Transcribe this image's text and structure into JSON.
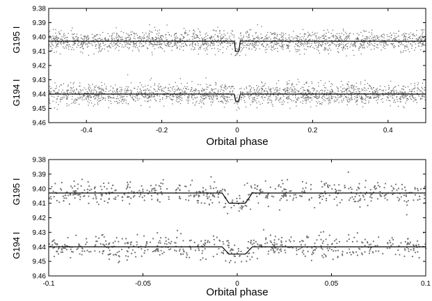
{
  "chart_data": [
    {
      "type": "scatter",
      "xlabel": "Orbital phase",
      "xlim": [
        -0.5,
        0.5
      ],
      "ylim": [
        9.38,
        9.46
      ],
      "y_inverted": true,
      "grid": false,
      "xticks": [
        -0.4,
        -0.2,
        0,
        0.2,
        0.4
      ],
      "xtick_labels": [
        "-0.4",
        "-0.2",
        "0",
        "0.2",
        "0.4"
      ],
      "yticks": [
        9.38,
        9.39,
        9.4,
        9.41,
        9.42,
        9.43,
        9.44,
        9.45,
        9.46
      ],
      "ytick_labels": [
        "9.38",
        "9.39",
        "9.40",
        "9.41",
        "9.42",
        "9.43",
        "9.44",
        "9.45",
        "9.46"
      ],
      "series": [
        {
          "name": "G195 I",
          "baseline": 9.403,
          "eclipse_depth": 0.007,
          "eclipse_half_width": 0.008,
          "scatter": 0.0035,
          "n_points": 1800
        },
        {
          "name": "G194 I",
          "baseline": 9.44,
          "eclipse_depth": 0.005,
          "eclipse_half_width": 0.008,
          "scatter": 0.0035,
          "n_points": 1800
        }
      ],
      "model_color": "#000000",
      "point_color": "#707070"
    },
    {
      "type": "scatter",
      "xlabel": "Orbital phase",
      "xlim": [
        -0.1,
        0.1
      ],
      "ylim": [
        9.38,
        9.46
      ],
      "y_inverted": true,
      "grid": false,
      "xticks": [
        -0.1,
        -0.05,
        0,
        0.05,
        0.1
      ],
      "xtick_labels": [
        "-0.1",
        "-0.05",
        "0",
        "0.05",
        "0.1"
      ],
      "yticks": [
        9.38,
        9.39,
        9.4,
        9.41,
        9.42,
        9.43,
        9.44,
        9.45,
        9.46
      ],
      "ytick_labels": [
        "9.38",
        "9.39",
        "9.40",
        "9.41",
        "9.42",
        "9.43",
        "9.44",
        "9.45",
        "9.46"
      ],
      "series": [
        {
          "name": "G195 I",
          "baseline": 9.403,
          "eclipse_depth": 0.007,
          "eclipse_half_width": 0.008,
          "scatter": 0.004,
          "n_points": 520
        },
        {
          "name": "G194 I",
          "baseline": 9.44,
          "eclipse_depth": 0.005,
          "eclipse_half_width": 0.008,
          "scatter": 0.004,
          "n_points": 520
        }
      ],
      "model_color": "#000000",
      "point_color": "#707070"
    }
  ]
}
